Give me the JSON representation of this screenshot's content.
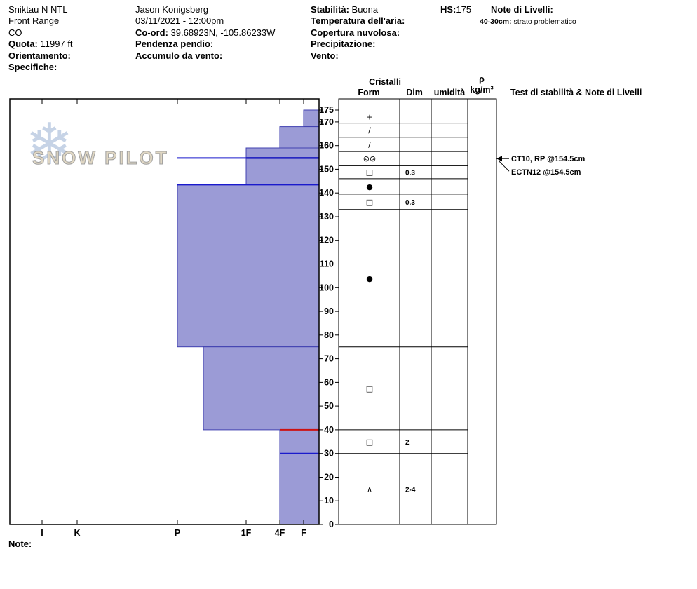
{
  "header": {
    "location": {
      "name": "Sniktau N NTL",
      "range": "Front Range",
      "state": "CO",
      "quota_label": "Quota:",
      "quota_value": "11997 ft",
      "orientamento_label": "Orientamento:",
      "specifiche_label": "Specifiche:"
    },
    "observer": {
      "name": "Jason Konigsberg",
      "datetime": "03/11/2021 - 12:00pm",
      "coord_label": "Co-ord:",
      "coord_value": "39.68923N, -105.86233W",
      "pendenza_label": "Pendenza pendio:",
      "accumulo_label": "Accumulo da vento:"
    },
    "conditions": {
      "stabilita_label": "Stabilità:",
      "stabilita_value": "Buona",
      "temperatura_label": "Temperatura dell'aria:",
      "copertura_label": "Copertura nuvolosa:",
      "precipitazione_label": "Precipitazione:",
      "vento_label": "Vento:"
    },
    "hs": {
      "label": "HS:",
      "value": "175"
    },
    "layer_notes": {
      "title": "Note di Livelli:",
      "entry_depth": "40-30cm:",
      "entry_text": "strato problematico"
    }
  },
  "table": {
    "cristalli": "Cristalli",
    "form": "Form",
    "dim": "Dim",
    "umidita": "umidità",
    "rho": "ρ",
    "kg_m3": "kg/m³",
    "test_header": "Test di stabilità & Note di Livelli"
  },
  "watermark": {
    "text": "SNOW PILOT",
    "snowflake": "❄"
  },
  "footer": {
    "note_label": "Note:"
  },
  "colors": {
    "bar_fill": "#9b9bd6",
    "bar_stroke": "#4040b0",
    "line_blue": "#1a1acc",
    "flag_red": "#cc1111",
    "watermark_flake": "#c6d3e6",
    "watermark_text": "#e0d7c3"
  },
  "chart_data": {
    "type": "snow-profile-hardness",
    "depth_unit": "cm",
    "hs_cm": 175,
    "depth_ticks": [
      175,
      170,
      160,
      150,
      140,
      130,
      120,
      110,
      100,
      90,
      80,
      70,
      60,
      50,
      40,
      30,
      20,
      10,
      0
    ],
    "hardness_categories": [
      "I",
      "K",
      "P",
      "1F",
      "4F",
      "F"
    ],
    "layers": [
      {
        "top_cm": 175,
        "bottom_cm": 168,
        "hardness": "F"
      },
      {
        "top_cm": 168,
        "bottom_cm": 159,
        "hardness": "4F"
      },
      {
        "top_cm": 159,
        "bottom_cm": 155,
        "hardness": "1F"
      },
      {
        "top_cm": 155,
        "bottom_cm": 154.5,
        "hardness": "P",
        "thin": true
      },
      {
        "top_cm": 154.5,
        "bottom_cm": 143.5,
        "hardness": "1F"
      },
      {
        "top_cm": 143.5,
        "bottom_cm": 75,
        "hardness": "P"
      },
      {
        "top_cm": 75,
        "bottom_cm": 40,
        "hardness": "P-"
      },
      {
        "top_cm": 40,
        "bottom_cm": 30,
        "hardness": "4F"
      },
      {
        "top_cm": 30,
        "bottom_cm": 0,
        "hardness": "4F"
      }
    ],
    "boundary_lines": [
      {
        "depth_cm": 154.75,
        "from_hardness": "P",
        "color": "blue",
        "thin_layer": true
      },
      {
        "depth_cm": 143.5,
        "from_hardness": "P",
        "color": "blue"
      },
      {
        "depth_cm": 40,
        "from_hardness": "4F",
        "color": "red"
      },
      {
        "depth_cm": 30,
        "from_hardness": "4F",
        "color": "blue"
      }
    ],
    "grain_rows": [
      {
        "top_cm": 175,
        "bottom_cm": 169.5,
        "form": "+",
        "dim": ""
      },
      {
        "top_cm": 169.5,
        "bottom_cm": 163.5,
        "form": "/",
        "dim": ""
      },
      {
        "top_cm": 163.5,
        "bottom_cm": 157.5,
        "form": "/",
        "dim": ""
      },
      {
        "top_cm": 157.5,
        "bottom_cm": 151.5,
        "form": "⊚⊚",
        "dim": ""
      },
      {
        "top_cm": 151.5,
        "bottom_cm": 146,
        "form": "□",
        "dim": "0.3"
      },
      {
        "top_cm": 146,
        "bottom_cm": 139.5,
        "form": "●",
        "dim": ""
      },
      {
        "top_cm": 139.5,
        "bottom_cm": 133,
        "form": "□",
        "dim": "0.3"
      },
      {
        "top_cm": 133,
        "bottom_cm": 75,
        "form": "●",
        "dim": ""
      },
      {
        "top_cm": 75,
        "bottom_cm": 40,
        "form": "□",
        "dim": ""
      },
      {
        "top_cm": 40,
        "bottom_cm": 30,
        "form": "□",
        "dim": "2"
      },
      {
        "top_cm": 30,
        "bottom_cm": 0,
        "form": "∧",
        "dim": "2-4"
      }
    ],
    "stability_tests": [
      {
        "label": "CT10, RP @154.5cm",
        "depth_cm": 154.5
      },
      {
        "label": "ECTN12 @154.5cm",
        "depth_cm": 154.5
      }
    ]
  }
}
